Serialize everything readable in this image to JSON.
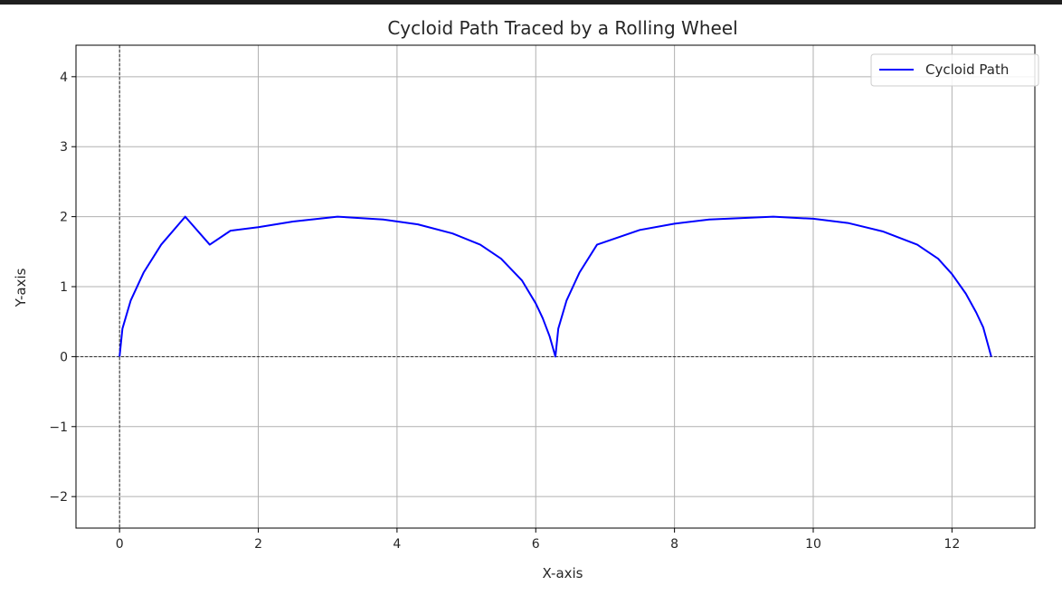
{
  "chart_data": {
    "type": "line",
    "title": "Cycloid Path Traced by a Rolling Wheel",
    "xlabel": "X-axis",
    "ylabel": "Y-axis",
    "xlim": [
      -0.628,
      13.195
    ],
    "ylim": [
      -2.45,
      4.45
    ],
    "x_ticks": [
      0,
      2,
      4,
      6,
      8,
      10,
      12
    ],
    "x_tick_labels": [
      "0",
      "2",
      "4",
      "6",
      "8",
      "10",
      "12"
    ],
    "y_ticks": [
      -2,
      -1,
      0,
      1,
      2,
      3,
      4
    ],
    "y_tick_labels": [
      "−2",
      "−1",
      "0",
      "1",
      "2",
      "3",
      "4"
    ],
    "grid": true,
    "legend_position": "top-right",
    "reference_lines": [
      {
        "orientation": "horizontal",
        "value": 0,
        "style": "dashed",
        "color": "#000000"
      },
      {
        "orientation": "vertical",
        "value": 0,
        "style": "dashed",
        "color": "#000000"
      }
    ],
    "series": [
      {
        "name": "Cycloid Path",
        "color": "#0000ff",
        "points": [
          [
            0.0,
            0.0
          ],
          [
            0.0416,
            0.4
          ],
          [
            0.1602,
            0.8
          ],
          [
            0.3464,
            1.2
          ],
          [
            0.6,
            1.6
          ],
          [
            0.9467,
            2.0
          ],
          [
            1.3,
            1.6
          ],
          [
            1.6,
            1.8
          ],
          [
            2.0,
            1.85
          ],
          [
            2.5,
            1.93
          ],
          [
            3.1416,
            2.0
          ],
          [
            3.8,
            1.96
          ],
          [
            4.3,
            1.89
          ],
          [
            4.8,
            1.76
          ],
          [
            5.2,
            1.6
          ],
          [
            5.5,
            1.4
          ],
          [
            5.8,
            1.09
          ],
          [
            6.0,
            0.76
          ],
          [
            6.1,
            0.55
          ],
          [
            6.2,
            0.29
          ],
          [
            6.2832,
            0.0
          ],
          [
            6.3248,
            0.4
          ],
          [
            6.4434,
            0.8
          ],
          [
            6.6296,
            1.2
          ],
          [
            6.8832,
            1.6
          ],
          [
            7.5,
            1.81
          ],
          [
            8.0,
            1.9
          ],
          [
            8.5,
            1.96
          ],
          [
            9.4248,
            2.0
          ],
          [
            10.0,
            1.97
          ],
          [
            10.5,
            1.91
          ],
          [
            11.0,
            1.79
          ],
          [
            11.5,
            1.6
          ],
          [
            11.8,
            1.4
          ],
          [
            12.0,
            1.18
          ],
          [
            12.2,
            0.9
          ],
          [
            12.35,
            0.63
          ],
          [
            12.45,
            0.42
          ],
          [
            12.5664,
            0.0
          ]
        ]
      }
    ]
  }
}
